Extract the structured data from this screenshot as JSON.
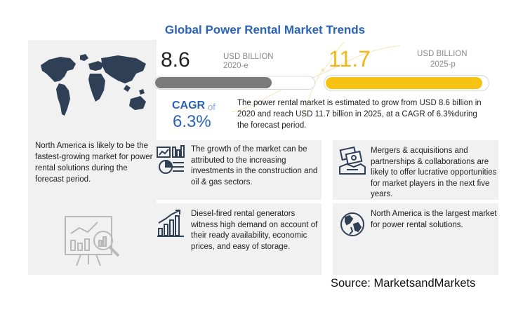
{
  "title": "Global Power Rental Market Trends",
  "left_panel": {
    "map_icon": "world-map-icon",
    "text": "North America is likely to be the fastest-growing market for power rental solutions during the forecast period.",
    "analysis_icon": "chart-analysis-icon"
  },
  "market": {
    "value_2020": "8.6",
    "unit_2020": "USD BILLION",
    "year_2020": "2020-e",
    "bar_2020_fraction": 0.735,
    "value_2025": "11.7",
    "unit_2025": "USD BILLION",
    "year_2025": "2025-p",
    "bar_2025_fraction": 0.97
  },
  "cagr": {
    "label": "CAGR",
    "of": "of",
    "value": "6.3%",
    "text": "The power rental market is estimated to grow from USD 8.6 billion in 2020 and reach USD 11.7  billion in 2025, at a CAGR of 6.3%during the forecast period."
  },
  "cards": [
    {
      "icon": "investment-chart-icon",
      "text": "The growth of the market can be attributed to the increasing investments in the construction and oil & gas sectors."
    },
    {
      "icon": "handshake-money-icon",
      "text": "Mergers & acquisitions and partnerships & collaborations are likely to offer lucrative opportunities for market players in the next five years."
    },
    {
      "icon": "bar-growth-icon",
      "text": "Diesel-fired rental generators witness high demand on account of their ready availability, economic prices, and easy of storage."
    },
    {
      "icon": "globe-icon",
      "text": "North America is the largest market for power rental solutions."
    }
  ],
  "source": "Source: MarketsandMarkets",
  "colors": {
    "title_blue": "#2a63b8",
    "accent_yellow": "#f7c313",
    "bar_gray": "#7a7a7a",
    "panel_gray": "#f1f1f1"
  }
}
